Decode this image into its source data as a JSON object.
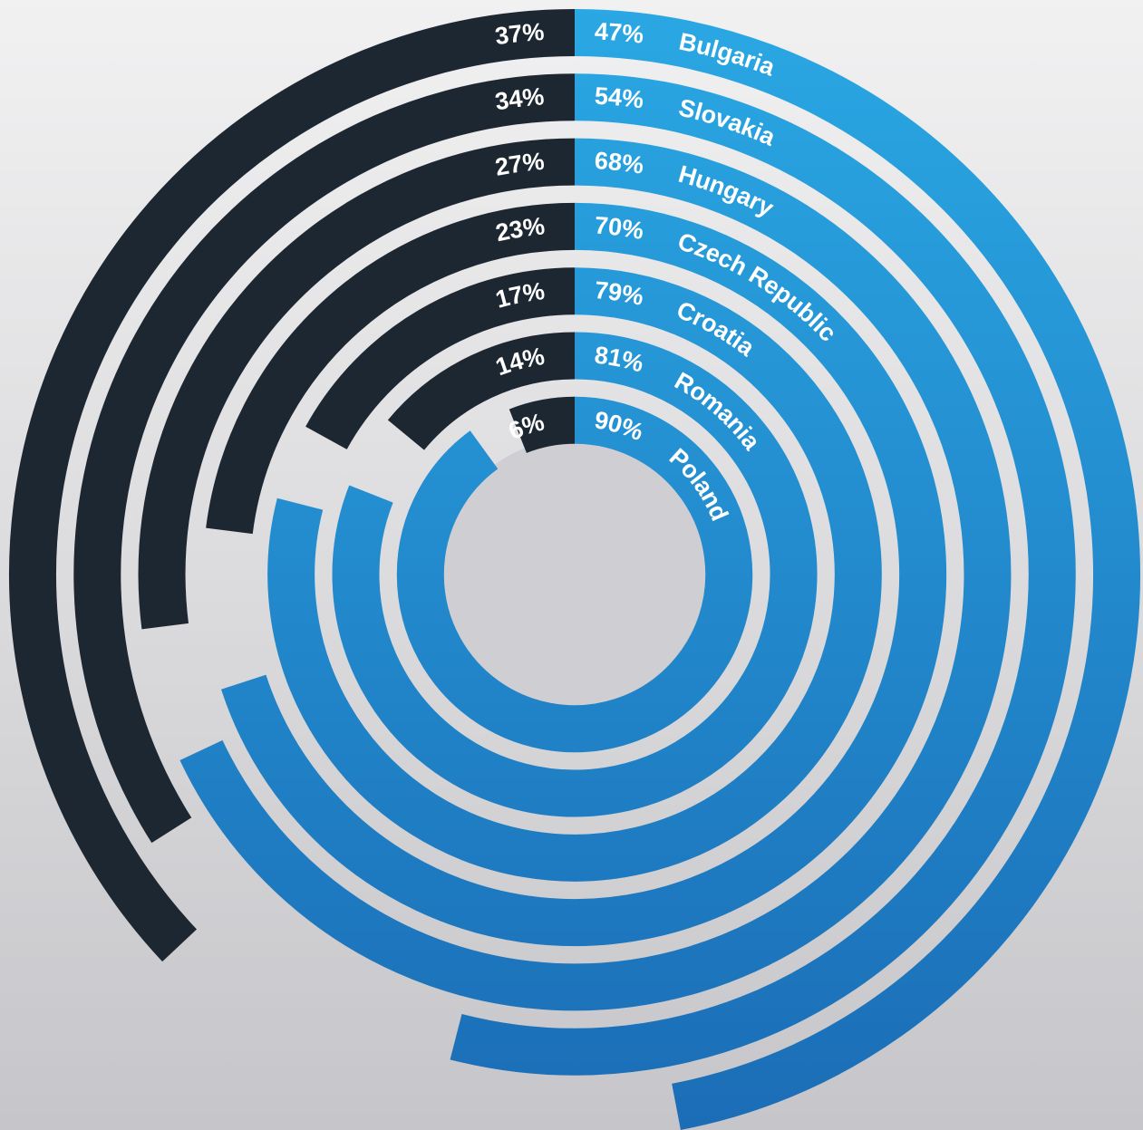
{
  "chart_data": {
    "type": "radial_bar",
    "categories": [
      "Bulgaria",
      "Slovakia",
      "Hungary",
      "Czech Republic",
      "Croatia",
      "Romania",
      "Poland"
    ],
    "series": [
      {
        "color": "#1d2731",
        "values": [
          37,
          34,
          27,
          23,
          17,
          14,
          6
        ],
        "value_labels": [
          "37%",
          "34%",
          "27%",
          "23%",
          "17%",
          "14%",
          "6%"
        ]
      },
      {
        "color": "#27a1de",
        "values": [
          47,
          54,
          68,
          70,
          79,
          81,
          90
        ],
        "value_labels": [
          "47%",
          "54%",
          "68%",
          "70%",
          "79%",
          "81%",
          "90%"
        ]
      }
    ]
  }
}
